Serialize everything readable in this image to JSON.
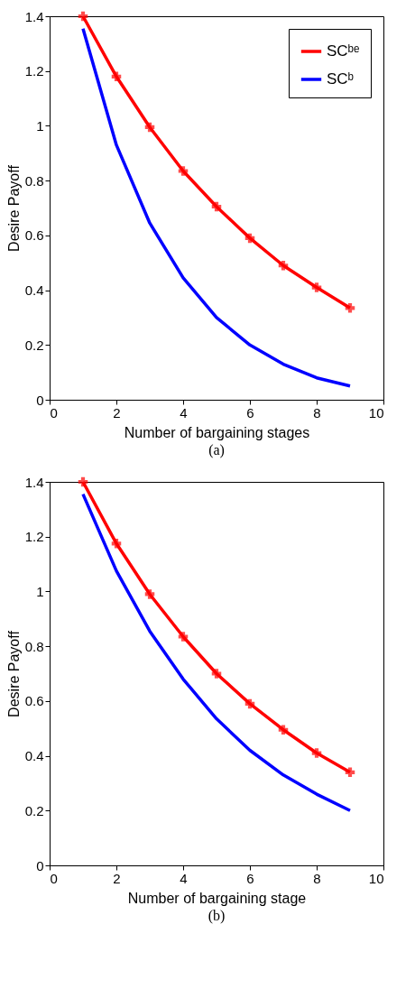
{
  "chart_data": [
    {
      "type": "line",
      "xlabel": "Number of bargaining stages",
      "ylabel": "Desire Payoff",
      "annotations": [
        "(a)"
      ],
      "x": [
        1,
        2,
        3,
        4,
        5,
        6,
        7,
        8,
        9
      ],
      "xlim": [
        0,
        10
      ],
      "xticks": [
        0,
        2,
        4,
        6,
        8,
        10
      ],
      "ylim": [
        0,
        1.4
      ],
      "yticks": [
        0,
        0.2,
        0.4,
        0.6,
        0.8,
        1,
        1.2,
        1.4
      ],
      "grid": false,
      "legend": "top right",
      "line_style": "solid",
      "series": [
        {
          "name": "SCᵇᵉ",
          "color": "#ff0000",
          "marker": "cross",
          "values": [
            1.4,
            1.18,
            0.995,
            0.835,
            0.705,
            0.59,
            0.49,
            0.41,
            0.335
          ]
        },
        {
          "name": "SCᵇ",
          "color": "#0000ff",
          "marker": "none",
          "values": [
            1.355,
            0.93,
            0.645,
            0.445,
            0.3,
            0.2,
            0.13,
            0.08,
            0.05
          ]
        }
      ]
    },
    {
      "type": "line",
      "xlabel": "Number of bargaining stage",
      "ylabel": "Desire Payoff",
      "annotations": [
        "(b)"
      ],
      "x": [
        1,
        2,
        3,
        4,
        5,
        6,
        7,
        8,
        9
      ],
      "xlim": [
        0,
        10
      ],
      "xticks": [
        0,
        2,
        4,
        6,
        8,
        10
      ],
      "ylim": [
        0,
        1.4
      ],
      "yticks": [
        0,
        0.2,
        0.4,
        0.6,
        0.8,
        1,
        1.2,
        1.4
      ],
      "grid": false,
      "legend": "top right",
      "line_style": "solid",
      "series": [
        {
          "name": "SCᵇᵉ",
          "color": "#ff0000",
          "marker": "cross",
          "values": [
            1.4,
            1.175,
            0.99,
            0.835,
            0.7,
            0.59,
            0.495,
            0.41,
            0.34
          ]
        },
        {
          "name": "SCᵇ",
          "color": "#0000ff",
          "marker": "none",
          "values": [
            1.355,
            1.075,
            0.855,
            0.68,
            0.535,
            0.42,
            0.33,
            0.26,
            0.2
          ]
        }
      ]
    }
  ]
}
